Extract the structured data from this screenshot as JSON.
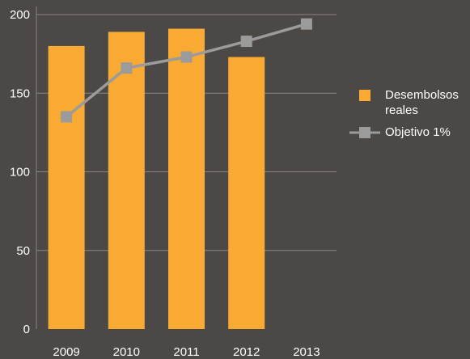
{
  "colors": {
    "background": "#4c4846",
    "bar": "#f8aa32",
    "line": "#9b9b9b",
    "grid": "#8a8583",
    "text": "#ffffff"
  },
  "chart_data": {
    "type": "bar",
    "categories": [
      "2009",
      "2010",
      "2011",
      "2012",
      "2013"
    ],
    "series": [
      {
        "name": "Desembolsos reales",
        "type": "bar",
        "values": [
          180,
          189,
          191,
          173,
          null
        ]
      },
      {
        "name": "Objetivo 1%",
        "type": "line",
        "values": [
          135,
          166,
          173,
          183,
          194
        ]
      }
    ],
    "ylim": [
      0,
      200
    ],
    "yticks": [
      "0",
      "50",
      "100",
      "150",
      "200"
    ],
    "grid": true,
    "legend": "right"
  },
  "legend": {
    "bar_label": "Desembolsos reales",
    "line_label": "Objetivo 1%"
  }
}
